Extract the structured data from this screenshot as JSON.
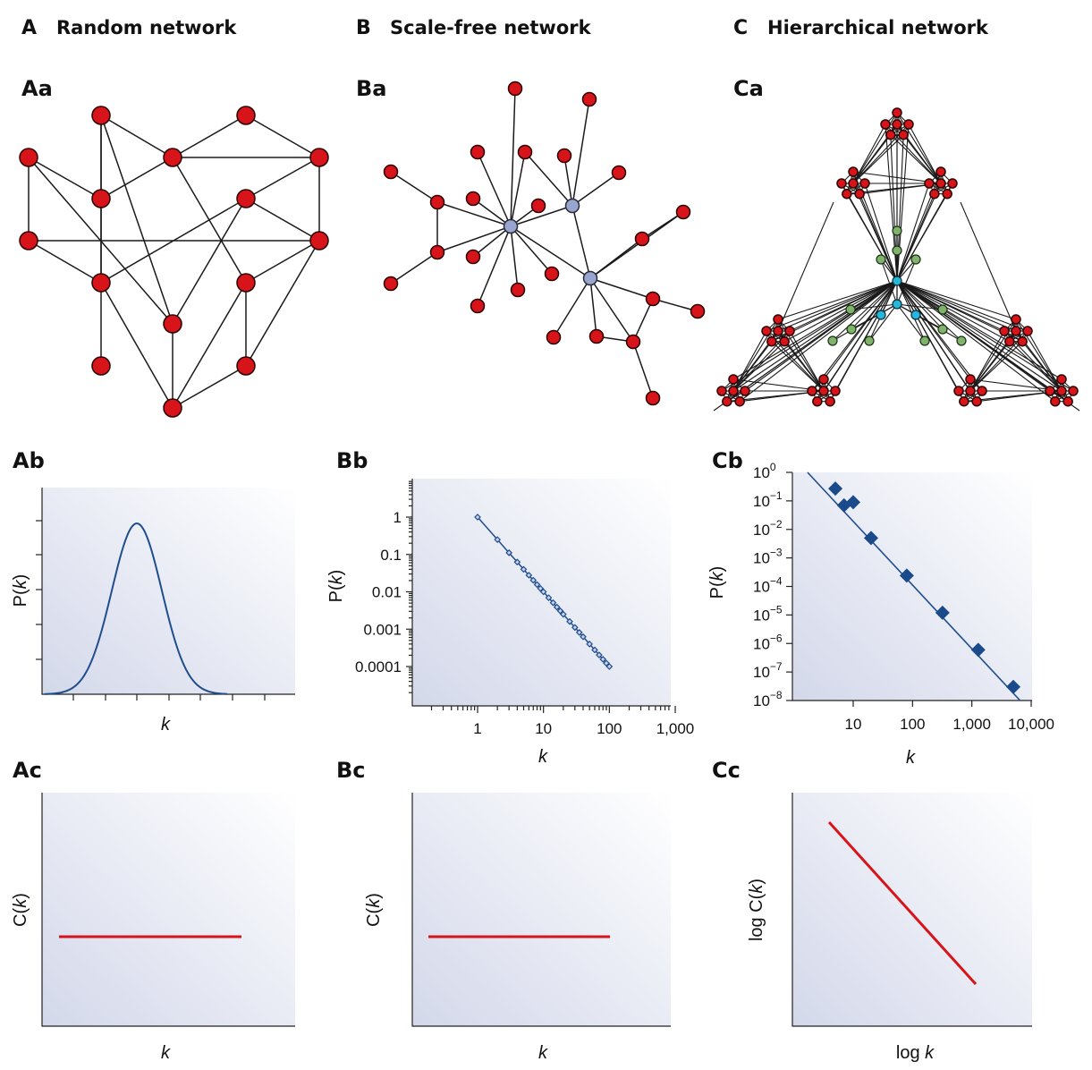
{
  "columns": [
    {
      "letter": "A",
      "title": "Random network"
    },
    {
      "letter": "B",
      "title": "Scale-free network"
    },
    {
      "letter": "C",
      "title": "Hierarchical network"
    }
  ],
  "panels": {
    "Aa": "Aa",
    "Ba": "Ba",
    "Ca": "Ca",
    "Ab": "Ab",
    "Bb": "Bb",
    "Cb": "Cb",
    "Ac": "Ac",
    "Bc": "Bc",
    "Cc": "Cc"
  },
  "colors": {
    "node_red": "#d7141a",
    "node_hub": "#98a6cf",
    "node_green": "#7fb36b",
    "node_cyan": "#27b7d8",
    "curve": "#1f4e8c",
    "marker": "#1a4a8a",
    "red_line": "#d7141a",
    "bg_dark": "#d5d9ea",
    "bg_light": "#ffffff"
  },
  "chart_data": [
    {
      "id": "Ab",
      "type": "line",
      "title": "",
      "xlabel": "k",
      "ylabel": "P(k)",
      "shape": "bell-shaped (Poisson-like) curve",
      "x_tick_labels": [],
      "y_tick_labels": []
    },
    {
      "id": "Bb",
      "type": "scatter",
      "xlabel": "k",
      "ylabel": "P(k)",
      "xscale": "log",
      "yscale": "log",
      "xlim": [
        0.2,
        1000
      ],
      "ylim": [
        3e-05,
        10
      ],
      "x_tick_labels": [
        "1",
        "10",
        "100",
        "1,000"
      ],
      "y_tick_labels": [
        "1",
        "0.1",
        "0.01",
        "0.001",
        "0.0001"
      ],
      "x_ticks": [
        1,
        10,
        100,
        1000
      ],
      "y_ticks": [
        1,
        0.1,
        0.01,
        0.001,
        0.0001
      ],
      "series": [
        {
          "x": [
            1,
            2,
            3,
            4,
            5,
            6,
            7,
            8,
            9,
            10,
            12,
            14,
            16,
            18,
            20,
            25,
            30,
            35,
            40,
            50,
            60,
            70,
            80,
            90,
            100
          ],
          "y": [
            1,
            0.25,
            0.111,
            0.0625,
            0.04,
            0.0278,
            0.0204,
            0.0156,
            0.0123,
            0.01,
            0.00694,
            0.0051,
            0.0039,
            0.00309,
            0.0025,
            0.0016,
            0.00111,
            0.000816,
            0.000625,
            0.0004,
            0.000278,
            0.000204,
            0.000156,
            0.000123,
            0.0001
          ]
        }
      ]
    },
    {
      "id": "Cb",
      "type": "scatter",
      "xlabel": "k",
      "ylabel": "P(k)",
      "xscale": "log",
      "yscale": "log",
      "xlim": [
        1.5,
        10000
      ],
      "ylim": [
        1e-08,
        1
      ],
      "x_tick_labels": [
        "10",
        "100",
        "1,000",
        "10,000"
      ],
      "x_ticks": [
        10,
        100,
        1000,
        10000
      ],
      "y_tick_exponents": [
        "0",
        "−1",
        "−2",
        "−3",
        "−4",
        "−5",
        "−6",
        "−7",
        "−8"
      ],
      "y_tick_base": "10",
      "y_ticks": [
        1,
        0.1,
        0.01,
        0.001,
        0.0001,
        1e-05,
        1e-06,
        1e-07,
        1e-08
      ],
      "series": [
        {
          "x": [
            5,
            7,
            10,
            20,
            80,
            320,
            1280,
            5000
          ],
          "y": [
            0.27,
            0.07,
            0.09,
            0.005,
            0.00024,
            1.2e-05,
            6e-07,
            3e-08
          ]
        }
      ],
      "fit_line": {
        "x": [
          1.7,
          6500
        ],
        "y": [
          1.0,
          1e-08
        ]
      }
    },
    {
      "id": "Ac",
      "type": "line",
      "xlabel": "k",
      "ylabel": "C(k)",
      "shape": "flat (constant) line"
    },
    {
      "id": "Bc",
      "type": "line",
      "xlabel": "k",
      "ylabel": "C(k)",
      "shape": "flat (constant) line"
    },
    {
      "id": "Cc",
      "type": "line",
      "xlabel": "log k",
      "ylabel": "log C(k)",
      "shape": "straight decreasing line"
    }
  ]
}
